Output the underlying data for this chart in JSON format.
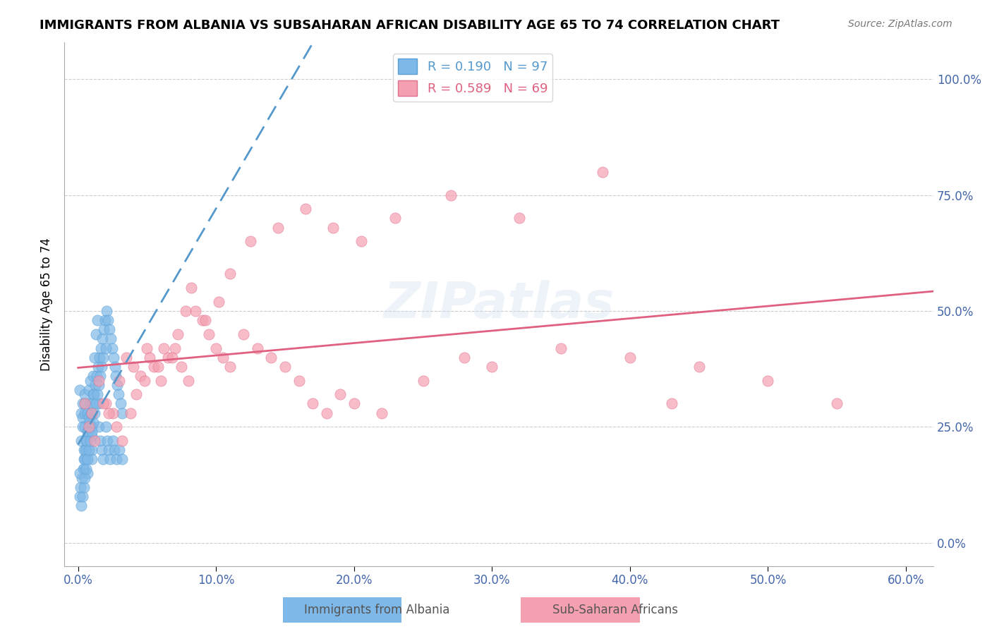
{
  "title": "IMMIGRANTS FROM ALBANIA VS SUBSAHARAN AFRICAN DISABILITY AGE 65 TO 74 CORRELATION CHART",
  "source": "Source: ZipAtlas.com",
  "ylabel": "Disability Age 65 to 74",
  "xlabel_ticks": [
    "0.0%",
    "10.0%",
    "20.0%",
    "30.0%",
    "40.0%",
    "50.0%",
    "60.0%"
  ],
  "xlabel_vals": [
    0,
    10,
    20,
    30,
    40,
    50,
    60
  ],
  "ylabel_ticks": [
    "0.0%",
    "25.0%",
    "50.0%",
    "75.0%",
    "100.0%"
  ],
  "ylabel_vals": [
    0,
    25,
    50,
    75,
    100
  ],
  "xlim": [
    -1,
    62
  ],
  "ylim": [
    -5,
    108
  ],
  "legend_albania": "R = 0.190   N = 97",
  "legend_subsaharan": "R = 0.589   N = 69",
  "albania_color": "#7EB8E8",
  "albania_edge": "#5A9FD4",
  "subsaharan_color": "#F4A0B0",
  "subsaharan_edge": "#E07090",
  "trendline_albania_color": "#5599CC",
  "trendline_subsaharan_color": "#E06080",
  "watermark": "ZIPatlas",
  "albania_x": [
    0.1,
    0.2,
    0.2,
    0.3,
    0.3,
    0.3,
    0.4,
    0.4,
    0.4,
    0.5,
    0.5,
    0.5,
    0.5,
    0.6,
    0.6,
    0.6,
    0.7,
    0.7,
    0.7,
    0.8,
    0.8,
    0.9,
    0.9,
    1.0,
    1.0,
    1.0,
    1.0,
    1.1,
    1.1,
    1.2,
    1.3,
    1.4,
    1.5,
    1.5,
    1.6,
    1.7,
    1.8,
    2.0,
    2.1,
    2.2,
    2.3,
    2.5,
    2.6,
    2.8,
    3.0,
    3.2,
    0.1,
    0.15,
    0.25,
    0.35,
    0.45,
    0.55,
    0.65,
    0.75,
    0.85,
    0.95,
    1.05,
    1.15,
    1.25,
    1.35,
    1.45,
    1.55,
    1.65,
    1.75,
    1.85,
    1.95,
    2.05,
    2.15,
    2.25,
    2.35,
    2.45,
    2.55,
    2.65,
    2.75,
    2.85,
    2.95,
    3.1,
    3.2,
    0.1,
    0.2,
    0.3,
    0.4,
    0.5,
    0.6,
    0.7,
    0.8,
    0.9,
    1.0,
    1.1,
    1.2,
    1.3,
    1.4,
    1.5,
    1.6,
    1.7,
    1.8,
    2.0
  ],
  "albania_y": [
    33,
    28,
    22,
    30,
    27,
    25,
    20,
    18,
    16,
    32,
    30,
    28,
    25,
    22,
    20,
    18,
    15,
    28,
    24,
    33,
    27,
    35,
    30,
    25,
    23,
    20,
    18,
    36,
    32,
    40,
    45,
    48,
    30,
    25,
    22,
    20,
    18,
    25,
    22,
    20,
    18,
    22,
    20,
    18,
    20,
    18,
    10,
    12,
    14,
    16,
    18,
    20,
    22,
    24,
    26,
    28,
    30,
    32,
    34,
    36,
    38,
    40,
    42,
    44,
    46,
    48,
    50,
    48,
    46,
    44,
    42,
    40,
    38,
    36,
    34,
    32,
    30,
    28,
    15,
    8,
    10,
    12,
    14,
    16,
    18,
    20,
    22,
    24,
    26,
    28,
    30,
    32,
    34,
    36,
    38,
    40,
    42
  ],
  "subsaharan_x": [
    0.5,
    1.0,
    1.5,
    2.0,
    2.5,
    3.0,
    3.5,
    4.0,
    4.5,
    5.0,
    5.5,
    6.0,
    6.5,
    7.0,
    7.5,
    8.0,
    8.5,
    9.0,
    9.5,
    10.0,
    10.5,
    11.0,
    12.0,
    13.0,
    14.0,
    15.0,
    16.0,
    17.0,
    18.0,
    19.0,
    20.0,
    22.0,
    25.0,
    28.0,
    30.0,
    35.0,
    40.0,
    45.0,
    50.0,
    55.0,
    0.8,
    1.2,
    1.8,
    2.2,
    2.8,
    3.2,
    3.8,
    4.2,
    4.8,
    5.2,
    5.8,
    6.2,
    6.8,
    7.2,
    7.8,
    8.2,
    9.2,
    10.2,
    11.0,
    12.5,
    14.5,
    16.5,
    18.5,
    20.5,
    23.0,
    27.0,
    32.0,
    38.0,
    43.0
  ],
  "subsaharan_y": [
    30,
    28,
    35,
    30,
    28,
    35,
    40,
    38,
    36,
    42,
    38,
    35,
    40,
    42,
    38,
    35,
    50,
    48,
    45,
    42,
    40,
    38,
    45,
    42,
    40,
    38,
    35,
    30,
    28,
    32,
    30,
    28,
    35,
    40,
    38,
    42,
    40,
    38,
    35,
    30,
    25,
    22,
    30,
    28,
    25,
    22,
    28,
    32,
    35,
    40,
    38,
    42,
    40,
    45,
    50,
    55,
    48,
    52,
    58,
    65,
    68,
    72,
    68,
    65,
    70,
    75,
    70,
    80,
    30
  ]
}
